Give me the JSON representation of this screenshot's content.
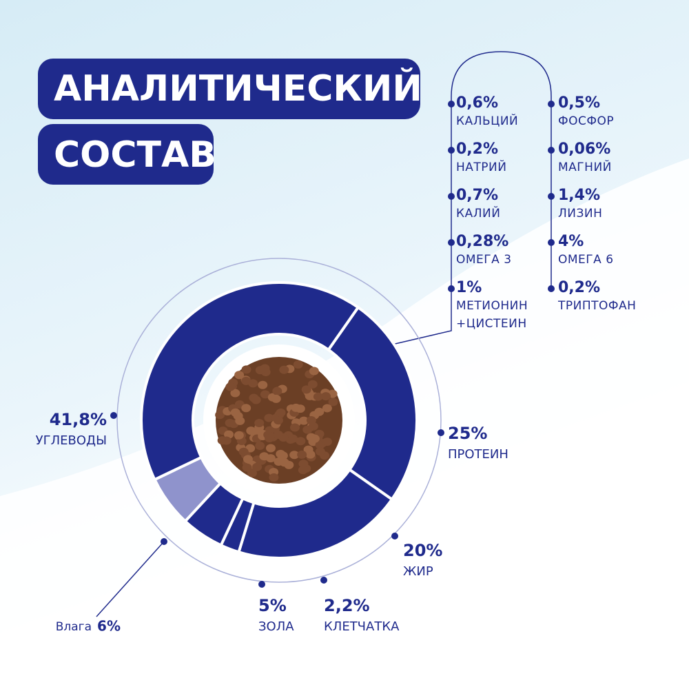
{
  "header": {
    "line1": "АНАЛИТИЧЕСКИЙ",
    "line2": "СОСТАВ"
  },
  "minerals": [
    {
      "value": "0,6%",
      "name": "КАЛЬЦИЙ"
    },
    {
      "value": "0,2%",
      "name": "НАТРИЙ"
    },
    {
      "value": "0,7%",
      "name": "КАЛИЙ"
    },
    {
      "value": "0,28%",
      "name": "ОМЕГА 3"
    },
    {
      "value": "1%",
      "name": "МЕТИОНИН +ЦИСТЕИН"
    },
    {
      "value": "0,5%",
      "name": "ФОСФОР"
    },
    {
      "value": "0,06%",
      "name": "МАГНИЙ"
    },
    {
      "value": "1,4%",
      "name": "ЛИЗИН"
    },
    {
      "value": "4%",
      "name": "ОМЕГА 6"
    },
    {
      "value": "0,2%",
      "name": "ТРИПТОФАН"
    }
  ],
  "chart_data": {
    "type": "donut",
    "categories": [
      "ПРОТЕИН",
      "ЖИР",
      "КЛЕТЧАТКА",
      "ЗОЛА",
      "Влага",
      "УГЛЕВОДЫ"
    ],
    "values": [
      25,
      20,
      2.2,
      5,
      6,
      41.8
    ],
    "value_labels": [
      "25%",
      "20%",
      "2,2%",
      "5%",
      "6%",
      "41,8%"
    ],
    "colors": [
      "#1f2a8c",
      "#1f2a8c",
      "#1f2a8c",
      "#1f2a8c",
      "#8f93cc",
      "#1f2a8c"
    ]
  }
}
